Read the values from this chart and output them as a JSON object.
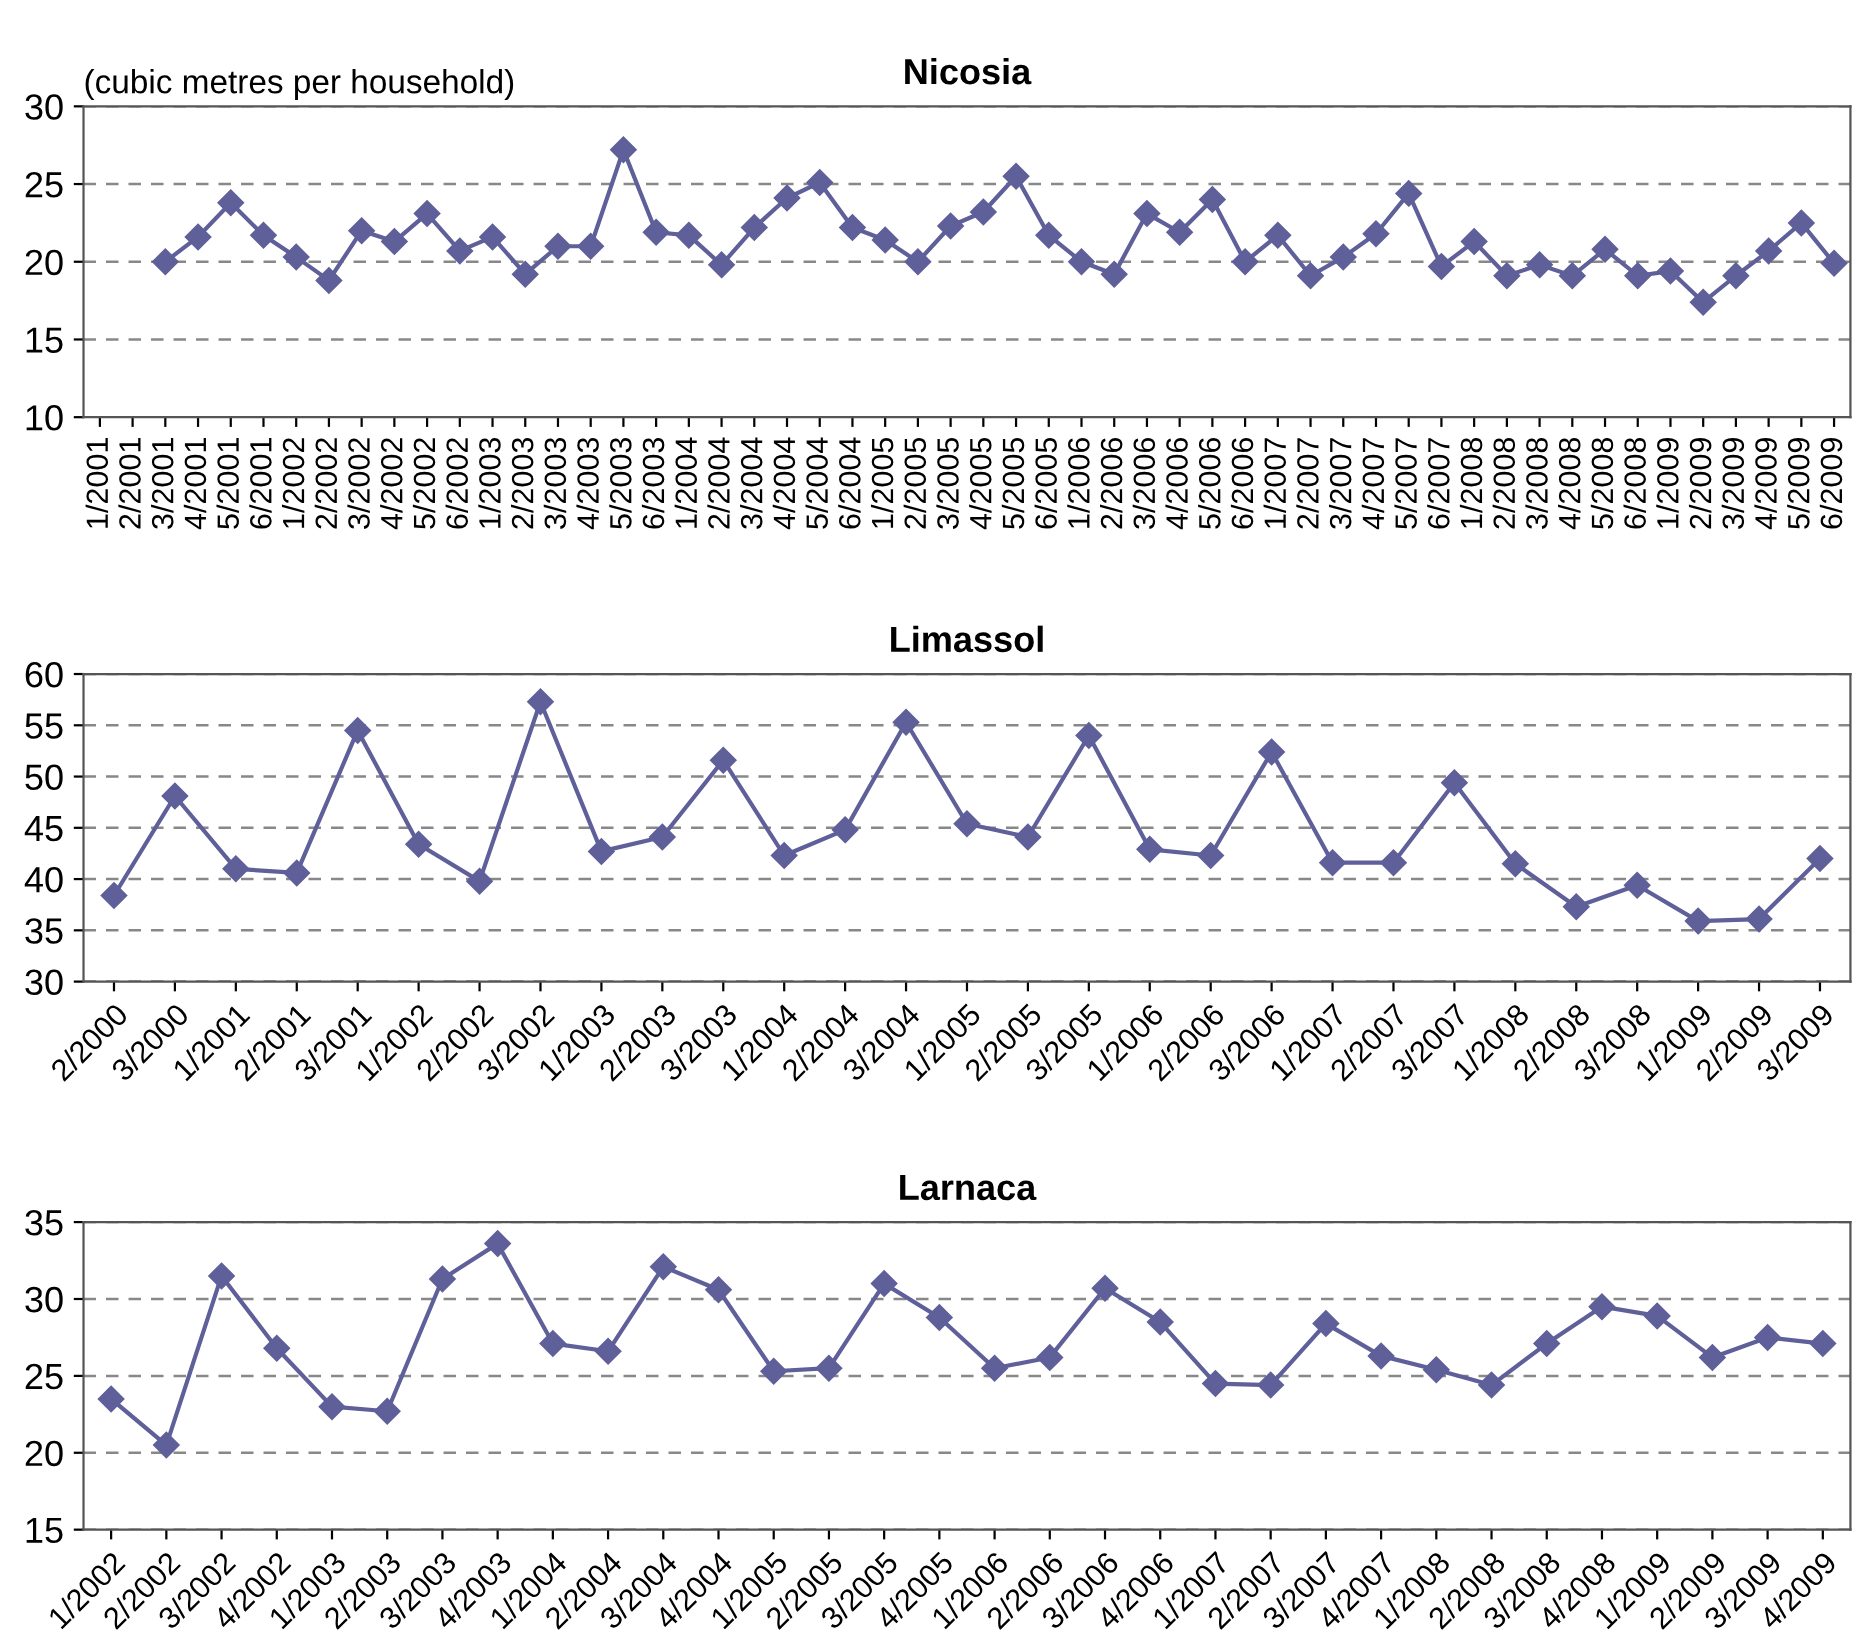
{
  "chart_data": [
    {
      "type": "line",
      "title": "Nicosia",
      "ylabel": "(cubic metres per household)",
      "categories": [
        "1/2001",
        "2/2001",
        "3/2001",
        "4/2001",
        "5/2001",
        "6/2001",
        "1/2002",
        "2/2002",
        "3/2002",
        "4/2002",
        "5/2002",
        "6/2002",
        "1/2003",
        "2/2003",
        "3/2003",
        "4/2003",
        "5/2003",
        "6/2003",
        "1/2004",
        "2/2004",
        "3/2004",
        "4/2004",
        "5/2004",
        "6/2004",
        "1/2005",
        "2/2005",
        "3/2005",
        "4/2005",
        "5/2005",
        "6/2005",
        "1/2006",
        "2/2006",
        "3/2006",
        "4/2006",
        "5/2006",
        "6/2006",
        "1/2007",
        "2/2007",
        "3/2007",
        "4/2007",
        "5/2007",
        "6/2007",
        "1/2008",
        "2/2008",
        "3/2008",
        "4/2008",
        "5/2008",
        "6/2008",
        "1/2009",
        "2/2009",
        "3/2009",
        "4/2009",
        "5/2009",
        "6/2009"
      ],
      "series": [
        {
          "color": "#5f5f9a",
          "values": [
            null,
            null,
            20.0,
            21.6,
            23.8,
            21.7,
            20.3,
            18.8,
            22.0,
            21.3,
            23.1,
            20.7,
            21.6,
            19.2,
            21.0,
            21.0,
            27.2,
            21.9,
            21.7,
            19.8,
            22.2,
            24.1,
            25.1,
            22.2,
            21.4,
            20.0,
            22.3,
            23.2,
            25.5,
            21.7,
            20.0,
            19.2,
            23.1,
            21.9,
            24.0,
            20.0,
            21.7,
            19.1,
            20.3,
            21.8,
            24.4,
            19.7,
            21.3,
            19.1,
            19.8,
            19.1,
            20.8,
            19.1,
            19.4,
            17.4,
            19.1,
            20.7,
            22.5,
            19.9
          ]
        }
      ],
      "ylim": [
        10,
        30
      ],
      "yticks": [
        10,
        15,
        20,
        25,
        30
      ],
      "grid": "y",
      "marker": "diamond",
      "line_style": "solid",
      "legend": false
    },
    {
      "type": "line",
      "title": "Limassol",
      "categories": [
        "2/2000",
        "3/2000",
        "1/2001",
        "2/2001",
        "3/2001",
        "1/2002",
        "2/2002",
        "3/2002",
        "1/2003",
        "2/2003",
        "3/2003",
        "1/2004",
        "2/2004",
        "3/2004",
        "1/2005",
        "2/2005",
        "3/2005",
        "1/2006",
        "2/2006",
        "3/2006",
        "1/2007",
        "2/2007",
        "3/2007",
        "1/2008",
        "2/2008",
        "3/2008",
        "1/2009",
        "2/2009",
        "3/2009"
      ],
      "series": [
        {
          "color": "#5f5f9a",
          "values": [
            38.4,
            48.1,
            41.0,
            40.6,
            54.5,
            43.4,
            39.8,
            57.3,
            42.7,
            44.1,
            51.6,
            42.3,
            44.8,
            55.3,
            45.4,
            44.1,
            54.0,
            42.9,
            42.3,
            52.4,
            41.6,
            41.6,
            49.4,
            41.5,
            37.3,
            39.4,
            35.9,
            36.1,
            42.0
          ]
        }
      ],
      "ylim": [
        30,
        60
      ],
      "yticks": [
        30,
        35,
        40,
        45,
        50,
        55,
        60
      ],
      "grid": "y",
      "marker": "diamond",
      "line_style": "solid",
      "legend": false
    },
    {
      "type": "line",
      "title": "Larnaca",
      "categories": [
        "1/2002",
        "2/2002",
        "3/2002",
        "4/2002",
        "1/2003",
        "2/2003",
        "3/2003",
        "4/2003",
        "1/2004",
        "2/2004",
        "3/2004",
        "4/2004",
        "1/2005",
        "2/2005",
        "3/2005",
        "4/2005",
        "1/2006",
        "2/2006",
        "3/2006",
        "4/2006",
        "1/2007",
        "2/2007",
        "3/2007",
        "4/2007",
        "1/2008",
        "2/2008",
        "3/2008",
        "4/2008",
        "1/2009",
        "2/2009",
        "3/2009",
        "4/2009"
      ],
      "series": [
        {
          "color": "#5f5f9a",
          "values": [
            23.5,
            20.5,
            31.5,
            26.8,
            23.0,
            22.7,
            31.3,
            33.6,
            27.1,
            26.6,
            32.1,
            30.6,
            25.3,
            25.5,
            31.0,
            28.8,
            25.5,
            26.2,
            30.7,
            28.5,
            24.5,
            24.4,
            28.4,
            26.3,
            25.4,
            24.4,
            27.1,
            29.5,
            28.9,
            26.2,
            27.5,
            27.1
          ]
        }
      ],
      "ylim": [
        15,
        35
      ],
      "yticks": [
        15,
        20,
        25,
        30,
        35
      ],
      "grid": "y",
      "marker": "diamond",
      "line_style": "solid",
      "legend": false
    }
  ]
}
